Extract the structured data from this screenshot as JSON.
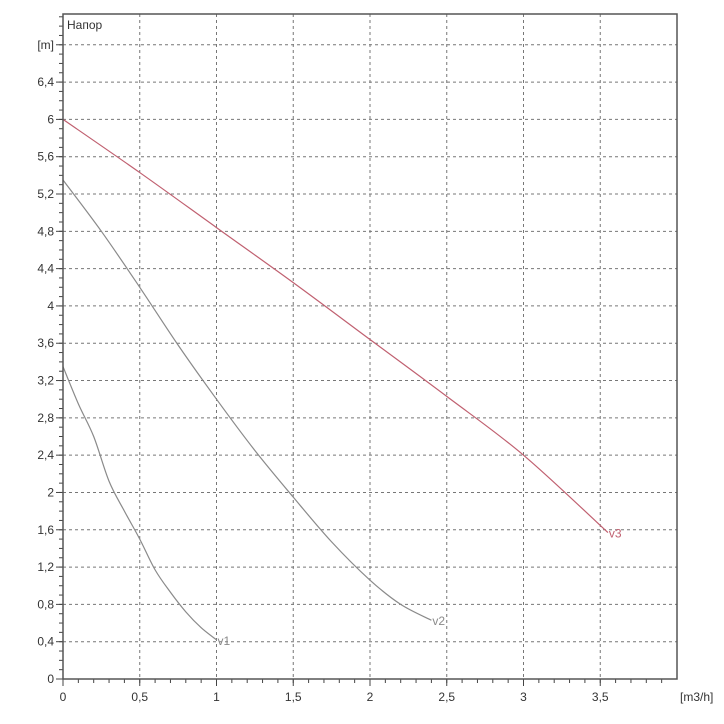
{
  "chart_data": {
    "type": "line",
    "title": "",
    "ylabel": "Напор",
    "y_unit": "[m]",
    "x_unit": "[m3/h]",
    "xlim": [
      0,
      4
    ],
    "ylim": [
      0,
      7.13
    ],
    "grid": true,
    "x_ticks": [
      0,
      0.5,
      1,
      1.5,
      2,
      2.5,
      3,
      3.5
    ],
    "x_tick_labels": [
      "0",
      "0,5",
      "1",
      "1,5",
      "2",
      "2,5",
      "3",
      "3,5"
    ],
    "y_ticks": [
      0,
      0.4,
      0.8,
      1.2,
      1.6,
      2,
      2.4,
      2.8,
      3.2,
      3.6,
      4,
      4.4,
      4.8,
      5.2,
      5.6,
      6,
      6.4
    ],
    "y_tick_labels": [
      "0",
      "0,4",
      "0,8",
      "1,2",
      "1,6",
      "2",
      "2,4",
      "2,8",
      "3,2",
      "3,6",
      "4",
      "4,4",
      "4,8",
      "5,2",
      "5,6",
      "6",
      "6,4"
    ],
    "y_unit_position": 6.8,
    "series": [
      {
        "name": "v1",
        "color": "#8a8a8a",
        "x": [
          0,
          0.1,
          0.2,
          0.3,
          0.4,
          0.5,
          0.6,
          0.7,
          0.8,
          0.9,
          1.0
        ],
        "y": [
          3.35,
          2.95,
          2.6,
          2.12,
          1.8,
          1.5,
          1.17,
          0.93,
          0.72,
          0.55,
          0.42
        ]
      },
      {
        "name": "v2",
        "color": "#8a8a8a",
        "x": [
          0,
          0.25,
          0.5,
          0.75,
          1.0,
          1.25,
          1.5,
          1.75,
          2.0,
          2.2,
          2.4
        ],
        "y": [
          5.35,
          4.8,
          4.2,
          3.58,
          3.0,
          2.45,
          1.95,
          1.47,
          1.06,
          0.8,
          0.63
        ]
      },
      {
        "name": "v3",
        "color": "#c06070",
        "x": [
          0,
          0.5,
          1.0,
          1.5,
          2.0,
          2.5,
          3.0,
          3.55
        ],
        "y": [
          6.0,
          5.43,
          4.84,
          4.25,
          3.64,
          3.03,
          2.4,
          1.57
        ]
      }
    ]
  }
}
